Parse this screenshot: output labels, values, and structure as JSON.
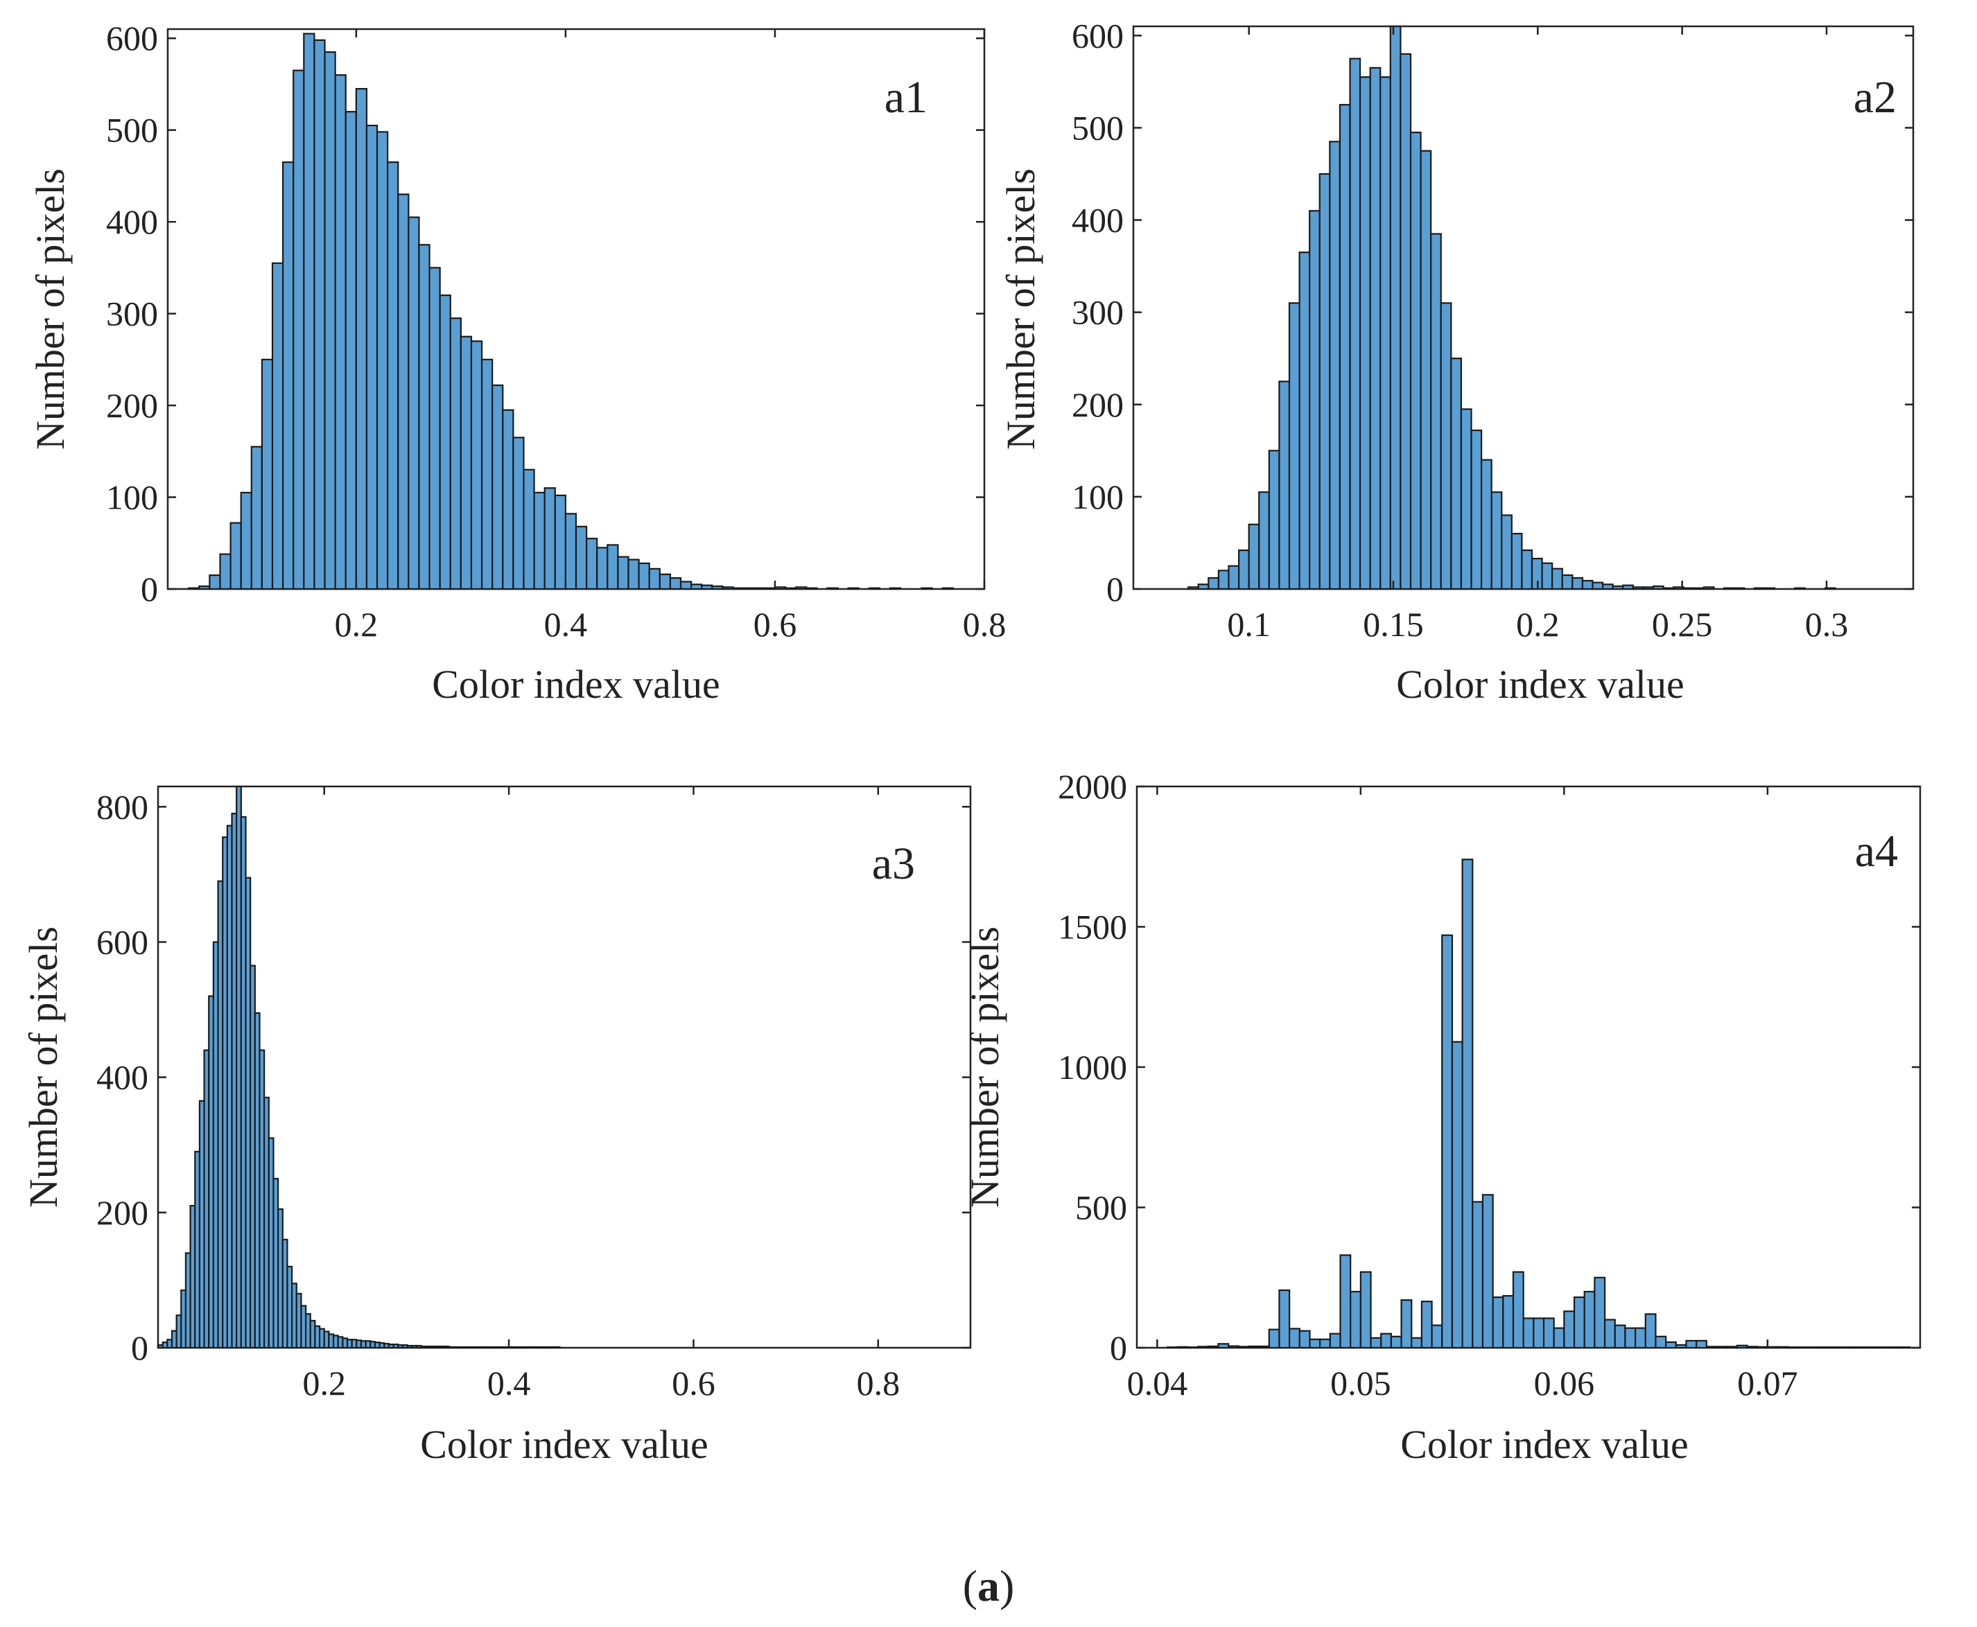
{
  "figure": {
    "caption_open": "(",
    "caption_letter": "a",
    "caption_close": ")",
    "bar_color": "#5a9fd4",
    "bar_edge_color": "#1a1a1a"
  },
  "chart_data": [
    {
      "type": "bar",
      "panel_label": "a1",
      "title": "",
      "xlabel": "Color index value",
      "ylabel": "Number of pixels",
      "xlim": [
        0.02,
        0.8
      ],
      "ylim": [
        0,
        610
      ],
      "xticks": [
        0.2,
        0.4,
        0.6,
        0.8
      ],
      "xtick_labels": [
        "0.2",
        "0.4",
        "0.6",
        "0.8"
      ],
      "yticks": [
        0,
        100,
        200,
        300,
        400,
        500,
        600
      ],
      "ytick_labels": [
        "0",
        "100",
        "200",
        "300",
        "400",
        "500",
        "600"
      ],
      "bins": {
        "start": 0.04,
        "width": 0.01,
        "counts": [
          1,
          3,
          15,
          38,
          72,
          105,
          155,
          250,
          355,
          465,
          565,
          605,
          598,
          585,
          560,
          520,
          545,
          505,
          498,
          465,
          430,
          405,
          375,
          350,
          320,
          295,
          275,
          270,
          250,
          222,
          195,
          165,
          130,
          105,
          110,
          102,
          82,
          68,
          55,
          45,
          48,
          35,
          32,
          28,
          22,
          16,
          12,
          8,
          5,
          4,
          3,
          2,
          1,
          1,
          1,
          1,
          2,
          1,
          2,
          1,
          0,
          1,
          0,
          1,
          0,
          1,
          0,
          1,
          0,
          0,
          1,
          0,
          1
        ]
      }
    },
    {
      "type": "bar",
      "panel_label": "a2",
      "title": "",
      "xlabel": "Color index value",
      "ylabel": "Number of pixels",
      "xlim": [
        0.06,
        0.33
      ],
      "ylim": [
        0,
        610
      ],
      "xticks": [
        0.1,
        0.15,
        0.2,
        0.25,
        0.3
      ],
      "xtick_labels": [
        "0.1",
        "0.15",
        "0.2",
        "0.25",
        "0.3"
      ],
      "yticks": [
        0,
        100,
        200,
        300,
        400,
        500,
        600
      ],
      "ytick_labels": [
        "0",
        "100",
        "200",
        "300",
        "400",
        "500",
        "600"
      ],
      "bins": {
        "start": 0.079,
        "width": 0.0035,
        "counts": [
          2,
          5,
          12,
          20,
          25,
          42,
          70,
          105,
          150,
          225,
          310,
          365,
          410,
          450,
          485,
          525,
          575,
          555,
          565,
          555,
          615,
          580,
          495,
          475,
          385,
          310,
          250,
          195,
          172,
          140,
          105,
          80,
          60,
          42,
          33,
          28,
          22,
          15,
          12,
          9,
          7,
          5,
          3,
          4,
          2,
          2,
          3,
          1,
          2,
          1,
          1,
          2,
          0,
          1,
          1,
          0,
          1,
          1,
          0,
          0,
          1,
          0,
          0,
          1,
          0,
          0,
          0
        ]
      }
    },
    {
      "type": "bar",
      "panel_label": "a3",
      "title": "",
      "xlabel": "Color index value",
      "ylabel": "Number of pixels",
      "xlim": [
        0.02,
        0.9
      ],
      "ylim": [
        0,
        830
      ],
      "xticks": [
        0.2,
        0.4,
        0.6,
        0.8
      ],
      "xtick_labels": [
        "0.2",
        "0.4",
        "0.6",
        "0.8"
      ],
      "yticks": [
        0,
        200,
        400,
        600,
        800
      ],
      "ytick_labels": [
        "0",
        "200",
        "400",
        "600",
        "800"
      ],
      "bins": {
        "start": 0.02,
        "width": 0.005,
        "counts": [
          4,
          8,
          12,
          25,
          48,
          85,
          140,
          210,
          290,
          365,
          440,
          520,
          600,
          690,
          755,
          772,
          790,
          830,
          785,
          695,
          565,
          495,
          440,
          370,
          310,
          250,
          205,
          160,
          120,
          95,
          80,
          62,
          50,
          40,
          32,
          28,
          24,
          20,
          18,
          16,
          14,
          12,
          12,
          11,
          10,
          10,
          9,
          8,
          7,
          6,
          5,
          5,
          4,
          4,
          3,
          3,
          3,
          2,
          2,
          2,
          2,
          2,
          2,
          1,
          1,
          1,
          1,
          1,
          1,
          1,
          1,
          1,
          1,
          1,
          1,
          1,
          1,
          1,
          1,
          1,
          1,
          1,
          1,
          1,
          1,
          1,
          1
        ]
      }
    },
    {
      "type": "bar",
      "panel_label": "a4",
      "title": "",
      "xlabel": "Color index value",
      "ylabel": "Number of pixels",
      "xlim": [
        0.039,
        0.0775
      ],
      "ylim": [
        0,
        2000
      ],
      "xticks": [
        0.04,
        0.05,
        0.06,
        0.07
      ],
      "xtick_labels": [
        "0.04",
        "0.05",
        "0.06",
        "0.07"
      ],
      "yticks": [
        0,
        500,
        1000,
        1500,
        2000
      ],
      "ytick_labels": [
        "0",
        "500",
        "1000",
        "1500",
        "2000"
      ],
      "bins": {
        "start": 0.0405,
        "width": 0.0005,
        "counts": [
          2,
          3,
          2,
          4,
          5,
          14,
          6,
          4,
          5,
          5,
          65,
          205,
          68,
          60,
          30,
          30,
          50,
          330,
          200,
          270,
          35,
          50,
          40,
          170,
          35,
          165,
          80,
          1470,
          1090,
          1740,
          520,
          545,
          180,
          185,
          270,
          105,
          105,
          105,
          70,
          130,
          180,
          200,
          250,
          100,
          80,
          70,
          70,
          120,
          40,
          20,
          10,
          25,
          25,
          4,
          4,
          4,
          8,
          4,
          3,
          3,
          3,
          2,
          2,
          2,
          2,
          2,
          2,
          2,
          2,
          2,
          2,
          2,
          2
        ]
      }
    }
  ]
}
